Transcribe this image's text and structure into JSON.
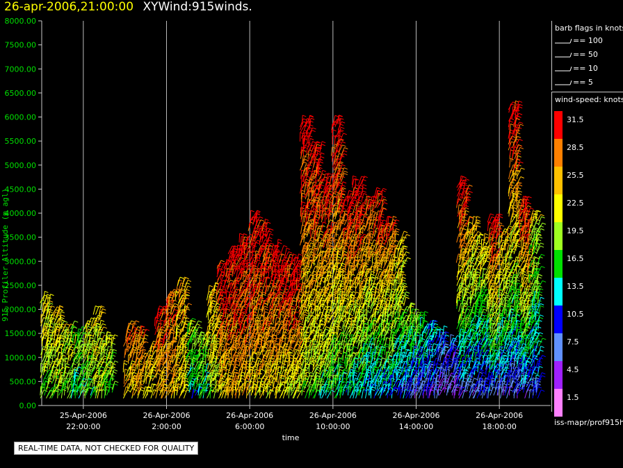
{
  "header": {
    "datetime": "26-apr-2006,21:00:00",
    "product": "XYWind:915winds."
  },
  "chart_data": {
    "type": "scatter",
    "ylabel": "915 Profiler Altitude (m agl)",
    "xlabel": "time",
    "ylim": [
      0,
      8000
    ],
    "xlim_hours": [
      0,
      24
    ],
    "y_ticks": [
      "0.00",
      "500.00",
      "1000.00",
      "1500.00",
      "2000.00",
      "2500.00",
      "3000.00",
      "3500.00",
      "4000.00",
      "4500.00",
      "5000.00",
      "5500.00",
      "6000.00",
      "6500.00",
      "7000.00",
      "7500.00",
      "8000.00"
    ],
    "x_ticks": [
      {
        "line1": "25-Apr-2006",
        "line2": "22:00:00"
      },
      {
        "line1": "26-Apr-2006",
        "line2": "2:00:00"
      },
      {
        "line1": "26-Apr-2006",
        "line2": "6:00:00"
      },
      {
        "line1": "26-Apr-2006",
        "line2": "10:00:00"
      },
      {
        "line1": "26-Apr-2006",
        "line2": "14:00:00"
      },
      {
        "line1": "26-Apr-2006",
        "line2": "18:00:00"
      }
    ],
    "grid": true,
    "barb_legend_title": "barb flags in knots",
    "barb_legend": [
      "== 100",
      "== 50",
      "== 10",
      "== 5"
    ],
    "speed_legend_title": "wind-speed: knots",
    "speed_levels": [
      {
        "label": "31.5",
        "color": "#ff0000"
      },
      {
        "label": "28.5",
        "color": "#ff8000"
      },
      {
        "label": "25.5",
        "color": "#ffc000"
      },
      {
        "label": "22.5",
        "color": "#ffff00"
      },
      {
        "label": "19.5",
        "color": "#a0ff20"
      },
      {
        "label": "16.5",
        "color": "#00e000"
      },
      {
        "label": "13.5",
        "color": "#00ffff"
      },
      {
        "label": "10.5",
        "color": "#0000ff"
      },
      {
        "label": "7.5",
        "color": "#6090ff"
      },
      {
        "label": "4.5",
        "color": "#a020ff"
      },
      {
        "label": "1.5",
        "color": "#ff80ff"
      }
    ],
    "profiles": [
      {
        "t": 0.0,
        "top": 2200,
        "low": 18,
        "high": 24
      },
      {
        "t": 0.5,
        "top": 1900,
        "low": 18,
        "high": 24
      },
      {
        "t": 1.0,
        "top": 1600,
        "low": 16,
        "high": 22
      },
      {
        "t": 1.5,
        "top": 1500,
        "low": 14,
        "high": 20
      },
      {
        "t": 2.0,
        "top": 1700,
        "low": 16,
        "high": 22
      },
      {
        "t": 2.5,
        "top": 1900,
        "low": 18,
        "high": 24
      },
      {
        "t": 3.0,
        "top": 1400,
        "low": 16,
        "high": 22
      },
      {
        "t": 4.0,
        "top": 1600,
        "low": 24,
        "high": 28
      },
      {
        "t": 4.5,
        "top": 1500,
        "low": 24,
        "high": 28
      },
      {
        "t": 5.0,
        "top": 1200,
        "low": 22,
        "high": 26
      },
      {
        "t": 5.5,
        "top": 1900,
        "low": 24,
        "high": 30
      },
      {
        "t": 6.0,
        "top": 2300,
        "low": 24,
        "high": 30
      },
      {
        "t": 6.5,
        "top": 2500,
        "low": 22,
        "high": 26
      },
      {
        "t": 7.0,
        "top": 1700,
        "low": 12,
        "high": 20
      },
      {
        "t": 7.5,
        "top": 1400,
        "low": 14,
        "high": 20
      },
      {
        "t": 8.0,
        "top": 2400,
        "low": 18,
        "high": 26
      },
      {
        "t": 8.5,
        "top": 2900,
        "low": 22,
        "high": 33
      },
      {
        "t": 9.0,
        "top": 3200,
        "low": 24,
        "high": 33
      },
      {
        "t": 9.5,
        "top": 3400,
        "low": 24,
        "high": 33
      },
      {
        "t": 10.0,
        "top": 3900,
        "low": 22,
        "high": 33
      },
      {
        "t": 10.5,
        "top": 3700,
        "low": 22,
        "high": 33
      },
      {
        "t": 11.0,
        "top": 3300,
        "low": 22,
        "high": 33
      },
      {
        "t": 11.5,
        "top": 3200,
        "low": 20,
        "high": 33
      },
      {
        "t": 12.0,
        "top": 3000,
        "low": 20,
        "high": 33
      },
      {
        "t": 12.5,
        "top": 5900,
        "low": 18,
        "high": 33
      },
      {
        "t": 13.0,
        "top": 5400,
        "low": 16,
        "high": 33
      },
      {
        "t": 13.5,
        "top": 4700,
        "low": 14,
        "high": 33
      },
      {
        "t": 14.0,
        "top": 5900,
        "low": 14,
        "high": 33
      },
      {
        "t": 14.5,
        "top": 4300,
        "low": 12,
        "high": 33
      },
      {
        "t": 15.0,
        "top": 4600,
        "low": 12,
        "high": 33
      },
      {
        "t": 15.5,
        "top": 4200,
        "low": 10,
        "high": 30
      },
      {
        "t": 16.0,
        "top": 4400,
        "low": 10,
        "high": 33
      },
      {
        "t": 16.5,
        "top": 3800,
        "low": 10,
        "high": 30
      },
      {
        "t": 17.0,
        "top": 3500,
        "low": 8,
        "high": 26
      },
      {
        "t": 17.5,
        "top": 2000,
        "low": 6,
        "high": 20
      },
      {
        "t": 18.0,
        "top": 1800,
        "low": 6,
        "high": 18
      },
      {
        "t": 18.5,
        "top": 1600,
        "low": 6,
        "high": 14
      },
      {
        "t": 19.0,
        "top": 1500,
        "low": 4,
        "high": 12
      },
      {
        "t": 19.5,
        "top": 1300,
        "low": 4,
        "high": 10
      },
      {
        "t": 20.0,
        "top": 4600,
        "low": 6,
        "high": 33
      },
      {
        "t": 20.5,
        "top": 3800,
        "low": 6,
        "high": 26
      },
      {
        "t": 21.0,
        "top": 3400,
        "low": 6,
        "high": 24
      },
      {
        "t": 21.5,
        "top": 3900,
        "low": 6,
        "high": 33
      },
      {
        "t": 22.0,
        "top": 3600,
        "low": 6,
        "high": 26
      },
      {
        "t": 22.5,
        "top": 6200,
        "low": 6,
        "high": 33
      },
      {
        "t": 23.0,
        "top": 4200,
        "low": 6,
        "high": 33
      },
      {
        "t": 23.5,
        "top": 3900,
        "low": 8,
        "high": 22
      }
    ]
  },
  "footer": {
    "quality_note": "REAL-TIME DATA, NOT CHECKED FOR QUALITY",
    "file_label": "iss-mapr/prof915h"
  }
}
